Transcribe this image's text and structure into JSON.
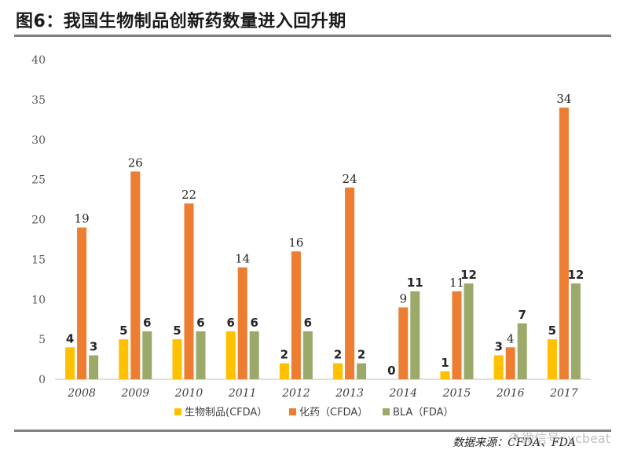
{
  "header": {
    "title": "图6：我国生物制品创新药数量进入回升期"
  },
  "footer": {
    "source": "数据来源：CFDA、FDA",
    "watermark": "微信号: vcbeat"
  },
  "chart_data": {
    "type": "bar",
    "title": "图6：我国生物制品创新药数量进入回升期",
    "xlabel": "",
    "ylabel": "",
    "ylim": [
      0,
      40
    ],
    "yticks": [
      0,
      5,
      10,
      15,
      20,
      25,
      30,
      35,
      40
    ],
    "grid": false,
    "legend_position": "bottom-center",
    "categories": [
      "2008",
      "2009",
      "2010",
      "2011",
      "2012",
      "2013",
      "2014",
      "2015",
      "2016",
      "2017"
    ],
    "series": [
      {
        "name": "生物制品(CFDA）",
        "color": "#FFC000",
        "values": [
          4,
          5,
          5,
          6,
          2,
          2,
          0,
          1,
          3,
          5
        ]
      },
      {
        "name": "化药（CFDA）",
        "color": "#ED7D31",
        "values": [
          19,
          26,
          22,
          14,
          16,
          24,
          9,
          11,
          4,
          34
        ]
      },
      {
        "name": "BLA（FDA）",
        "color": "#9BAA6A",
        "values": [
          3,
          6,
          6,
          6,
          6,
          2,
          11,
          12,
          7,
          12
        ]
      }
    ],
    "label_styles": [
      "bold-sans",
      "serif",
      "bold-sans"
    ]
  }
}
